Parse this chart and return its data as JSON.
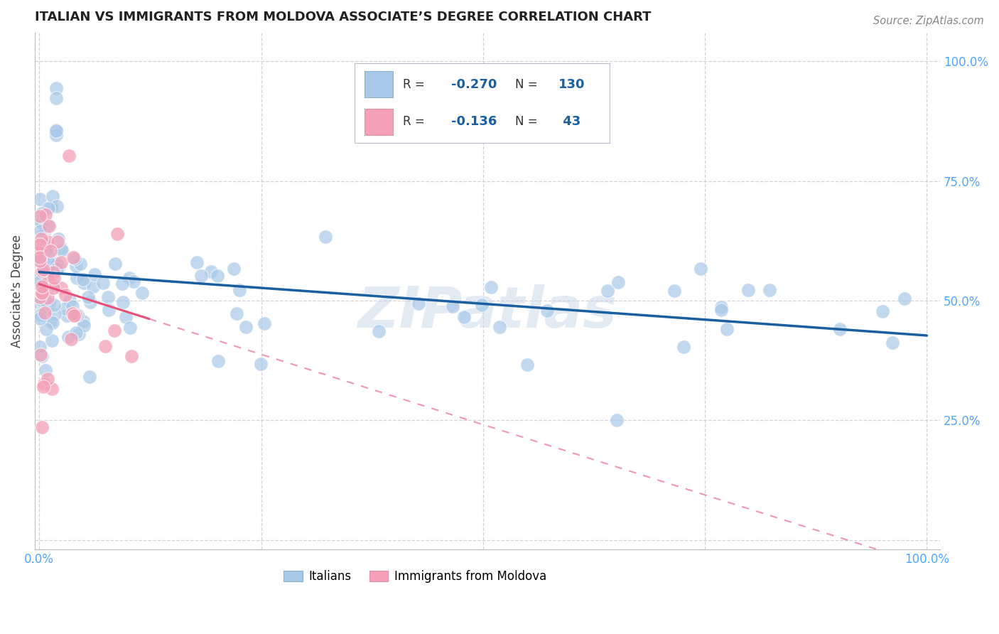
{
  "title": "ITALIAN VS IMMIGRANTS FROM MOLDOVA ASSOCIATE’S DEGREE CORRELATION CHART",
  "source": "Source: ZipAtlas.com",
  "ylabel": "Associate's Degree",
  "watermark": "ZIPatlas",
  "legend_italian_R": "-0.270",
  "legend_italian_N": "130",
  "legend_moldova_R": "-0.136",
  "legend_moldova_N": "43",
  "italian_color": "#a8c8e8",
  "moldova_color": "#f4a0b8",
  "italian_line_color": "#1a5fa0",
  "moldova_line_color": "#e8507a",
  "background_color": "#ffffff",
  "grid_color": "#c8c8d0",
  "axis_label_color": "#4da6ff",
  "title_color": "#222222"
}
